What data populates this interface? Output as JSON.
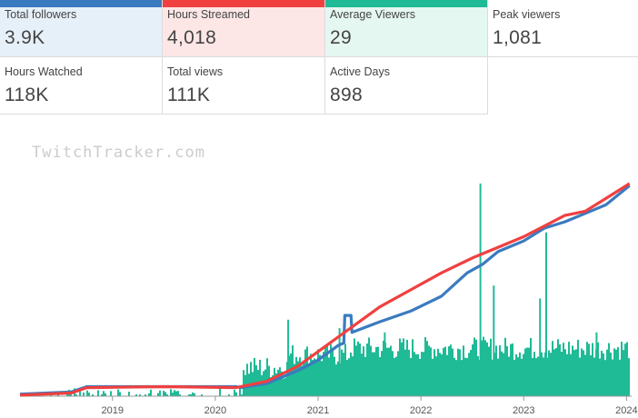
{
  "stats": [
    {
      "label": "Total followers",
      "value": "3.9K",
      "accent": "#3a7bbf"
    },
    {
      "label": "Hours Streamed",
      "value": "4,018",
      "accent": "#f04040"
    },
    {
      "label": "Average Viewers",
      "value": "29",
      "accent": "#1fba96"
    },
    {
      "label": "Peak viewers",
      "value": "1,081"
    },
    {
      "label": "Hours Watched",
      "value": "118K"
    },
    {
      "label": "Total views",
      "value": "111K"
    },
    {
      "label": "Active Days",
      "value": "898"
    }
  ],
  "watermark": "TwitchTracker.com",
  "colors": {
    "followers": "#3a7bbf",
    "hours": "#f04040",
    "viewers": "#1fba96"
  },
  "chart_data": {
    "type": "line",
    "title": "",
    "xlabel": "",
    "ylabel": "",
    "x_ticks": [
      "2019",
      "2020",
      "2021",
      "2022",
      "2023",
      "2024"
    ],
    "xlim": [
      2018.1,
      2024.05
    ],
    "grid": false,
    "series": [
      {
        "key": "followers",
        "points": [
          [
            2018.1,
            0.01
          ],
          [
            2018.6,
            0.02
          ],
          [
            2018.75,
            0.045
          ],
          [
            2019.5,
            0.045
          ],
          [
            2020.2,
            0.045
          ],
          [
            2020.25,
            0.04
          ],
          [
            2020.5,
            0.06
          ],
          [
            2020.8,
            0.12
          ],
          [
            2021.0,
            0.17
          ],
          [
            2021.2,
            0.24
          ],
          [
            2021.25,
            0.25
          ],
          [
            2021.26,
            0.38
          ],
          [
            2021.32,
            0.38
          ],
          [
            2021.33,
            0.3
          ],
          [
            2021.6,
            0.35
          ],
          [
            2021.9,
            0.4
          ],
          [
            2022.2,
            0.47
          ],
          [
            2022.45,
            0.58
          ],
          [
            2022.6,
            0.62
          ],
          [
            2022.75,
            0.68
          ],
          [
            2023.0,
            0.73
          ],
          [
            2023.2,
            0.79
          ],
          [
            2023.4,
            0.82
          ],
          [
            2023.6,
            0.86
          ],
          [
            2023.8,
            0.9
          ],
          [
            2024.03,
            0.99
          ]
        ]
      },
      {
        "key": "hours",
        "points": [
          [
            2018.1,
            0.005
          ],
          [
            2018.6,
            0.015
          ],
          [
            2018.75,
            0.04
          ],
          [
            2019.5,
            0.045
          ],
          [
            2020.2,
            0.04
          ],
          [
            2020.3,
            0.05
          ],
          [
            2020.5,
            0.07
          ],
          [
            2020.8,
            0.14
          ],
          [
            2021.0,
            0.21
          ],
          [
            2021.2,
            0.28
          ],
          [
            2021.4,
            0.35
          ],
          [
            2021.6,
            0.42
          ],
          [
            2021.9,
            0.5
          ],
          [
            2022.2,
            0.58
          ],
          [
            2022.5,
            0.65
          ],
          [
            2022.8,
            0.71
          ],
          [
            2023.0,
            0.75
          ],
          [
            2023.2,
            0.8
          ],
          [
            2023.4,
            0.85
          ],
          [
            2023.6,
            0.87
          ],
          [
            2023.8,
            0.93
          ],
          [
            2024.03,
            1.0
          ]
        ]
      },
      {
        "key": "viewers",
        "spikes": [
          [
            2022.57,
            1.0
          ],
          [
            2023.21,
            0.77
          ],
          [
            2021.64,
            0.3
          ],
          [
            2020.7,
            0.36
          ],
          [
            2021.2,
            0.32
          ],
          [
            2022.7,
            0.52
          ],
          [
            2023.15,
            0.46
          ],
          [
            2023.7,
            0.3
          ]
        ]
      }
    ]
  }
}
